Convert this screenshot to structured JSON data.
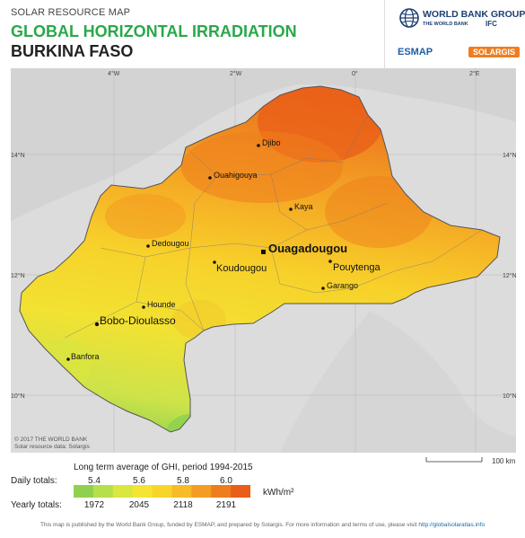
{
  "header": {
    "kicker": "SOLAR RESOURCE MAP",
    "title": "GLOBAL HORIZONTAL IRRADIATION",
    "country": "BURKINA FASO"
  },
  "logos": {
    "world_bank": "WORLD BANK GROUP",
    "world_bank_sub": "THE WORLD BANK",
    "ifc": "IFC",
    "esmap": "ESMAP",
    "solargis": "SOLARGIS"
  },
  "map": {
    "grid_labels": {
      "lon": [
        "4°W",
        "2°W",
        "0°",
        "2°E"
      ],
      "lat": [
        "14°N",
        "12°N",
        "10°N"
      ]
    },
    "cities": [
      {
        "name": "Djibo",
        "capital": false
      },
      {
        "name": "Ouahigouya",
        "capital": false
      },
      {
        "name": "Kaya",
        "capital": false
      },
      {
        "name": "Dedougou",
        "capital": false
      },
      {
        "name": "Ouagadougou",
        "capital": true
      },
      {
        "name": "Koudougou",
        "capital": false
      },
      {
        "name": "Pouytenga",
        "capital": false
      },
      {
        "name": "Garango",
        "capital": false
      },
      {
        "name": "Hounde",
        "capital": false
      },
      {
        "name": "Bobo-Dioulasso",
        "capital": false
      },
      {
        "name": "Banfora",
        "capital": false
      }
    ],
    "copyright_1": "© 2017 THE WORLD BANK",
    "copyright_2": "Solar resource data: Solargis",
    "scale_label": "100 km"
  },
  "legend": {
    "title": "Long term average of GHI, period 1994-2015",
    "daily_label": "Daily totals:",
    "yearly_label": "Yearly totals:",
    "daily_values": [
      "5.4",
      "5.6",
      "5.8",
      "6.0"
    ],
    "yearly_values": [
      "1972",
      "2045",
      "2118",
      "2191"
    ],
    "unit": "kWh/m²",
    "colors": [
      "#8fd14f",
      "#b6e04a",
      "#dbe640",
      "#f3e532",
      "#f7d52a",
      "#f6bb26",
      "#f39e22",
      "#ee7d1d",
      "#e95e18"
    ]
  },
  "footer": {
    "text": "This map is published by the World Bank Group, funded by ESMAP, and prepared by Solargis. For more information and terms of use, please visit",
    "link": "http://globalsolaratlas.info"
  }
}
